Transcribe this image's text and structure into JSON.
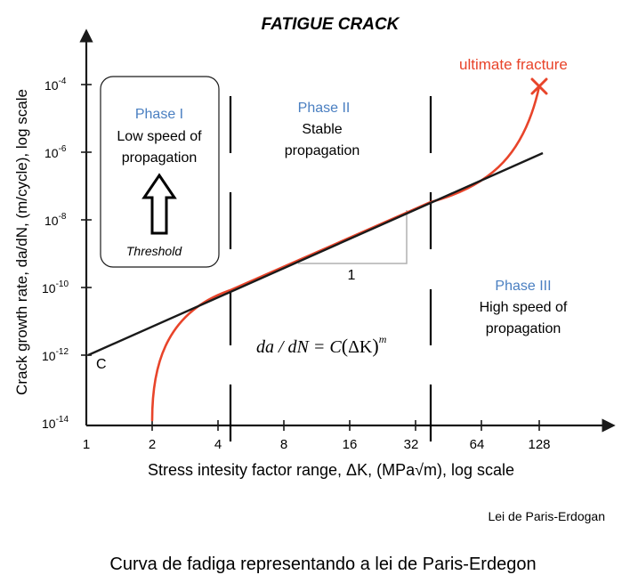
{
  "title": "FATIGUE CRACK",
  "axes": {
    "ylabel": "Crack growth rate, da/dN, (m/cycle), log scale",
    "xlabel": "Stress intesity factor range, ΔK, (MPa√m), log scale",
    "x_ticks": [
      "1",
      "2",
      "4",
      "8",
      "16",
      "32",
      "64",
      "128"
    ],
    "y_ticks": [
      {
        "base": "10",
        "exp": "-4"
      },
      {
        "base": "10",
        "exp": "-6"
      },
      {
        "base": "10",
        "exp": "-8"
      },
      {
        "base": "10",
        "exp": "-10"
      },
      {
        "base": "10",
        "exp": "-12"
      },
      {
        "base": "10",
        "exp": "-14"
      }
    ]
  },
  "phases": {
    "phase1": {
      "title": "Phase I",
      "line1": "Low speed of",
      "line2": "propagation",
      "threshold": "Threshold"
    },
    "phase2": {
      "title": "Phase II",
      "line1": "Stable",
      "line2": "propagation"
    },
    "phase3": {
      "title": "Phase III",
      "line1": "High speed of",
      "line2": "propagation"
    }
  },
  "annotations": {
    "ultimate": "ultimate fracture",
    "c_label": "C",
    "slope_label": "1",
    "equation": {
      "lhs": "da / dN = C",
      "open": "(",
      "delta_k": "ΔK",
      "close": ")",
      "exp": "m"
    }
  },
  "caption_small": "Lei de Paris-Erdogan",
  "caption_main": "Curva de fadiga representando a lei de Paris-Erdegon",
  "colors": {
    "curve": "#e8442a",
    "phase_title": "#4a7fc1",
    "axis": "#1a1a1a",
    "slope_triangle": "#b0b0b0"
  }
}
